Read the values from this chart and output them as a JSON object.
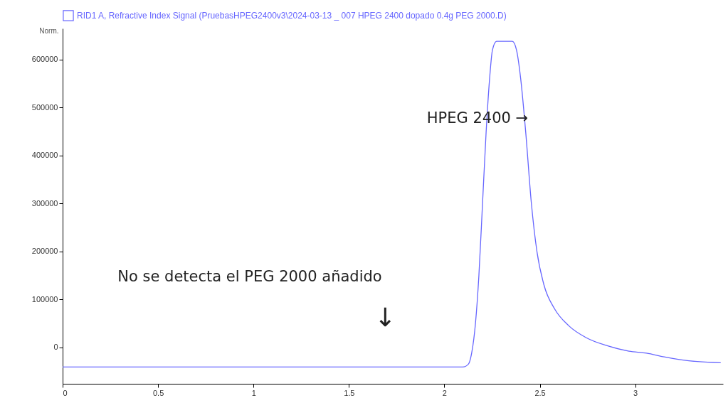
{
  "chart_data": {
    "type": "line",
    "ylabel": "Norm.",
    "x": [
      0,
      2.096,
      2.126,
      2.144,
      2.163,
      2.181,
      2.2,
      2.219,
      2.237,
      2.252,
      2.274,
      2.356,
      2.378,
      2.4,
      2.426,
      2.456,
      2.485,
      2.522,
      2.578,
      2.652,
      2.744,
      2.856,
      2.967,
      3.059,
      3.152,
      3.281,
      3.448
    ],
    "series": [
      {
        "name": "RID1 A, Refractive Index Signal (PruebasHPEG2400v3\\2024-03-13 _ 007    HPEG 2400 dopado 0.4g PEG 2000.D)",
        "color": "#6666ff",
        "values": [
          -41000,
          -41000,
          -35000,
          -10000,
          50000,
          150000,
          300000,
          450000,
          560000,
          620000,
          638000,
          638000,
          620000,
          560000,
          450000,
          300000,
          200000,
          130000,
          80000,
          45000,
          20000,
          3000,
          -8000,
          -12000,
          -20000,
          -28000,
          -32000
        ]
      }
    ],
    "xlim": [
      0,
      3.46
    ],
    "xticks": [
      0,
      0.5,
      1,
      1.5,
      2,
      2.5,
      3
    ],
    "ylim": [
      -76000,
      665000
    ],
    "yticks": [
      0,
      100000,
      200000,
      300000,
      400000,
      500000,
      600000
    ],
    "grid": false,
    "legend": "top",
    "marker": "none",
    "line_style": "solid",
    "annotations": [
      "HPEG 2400 →",
      "No se detecta el PEG 2000 añadido",
      "↓"
    ]
  }
}
